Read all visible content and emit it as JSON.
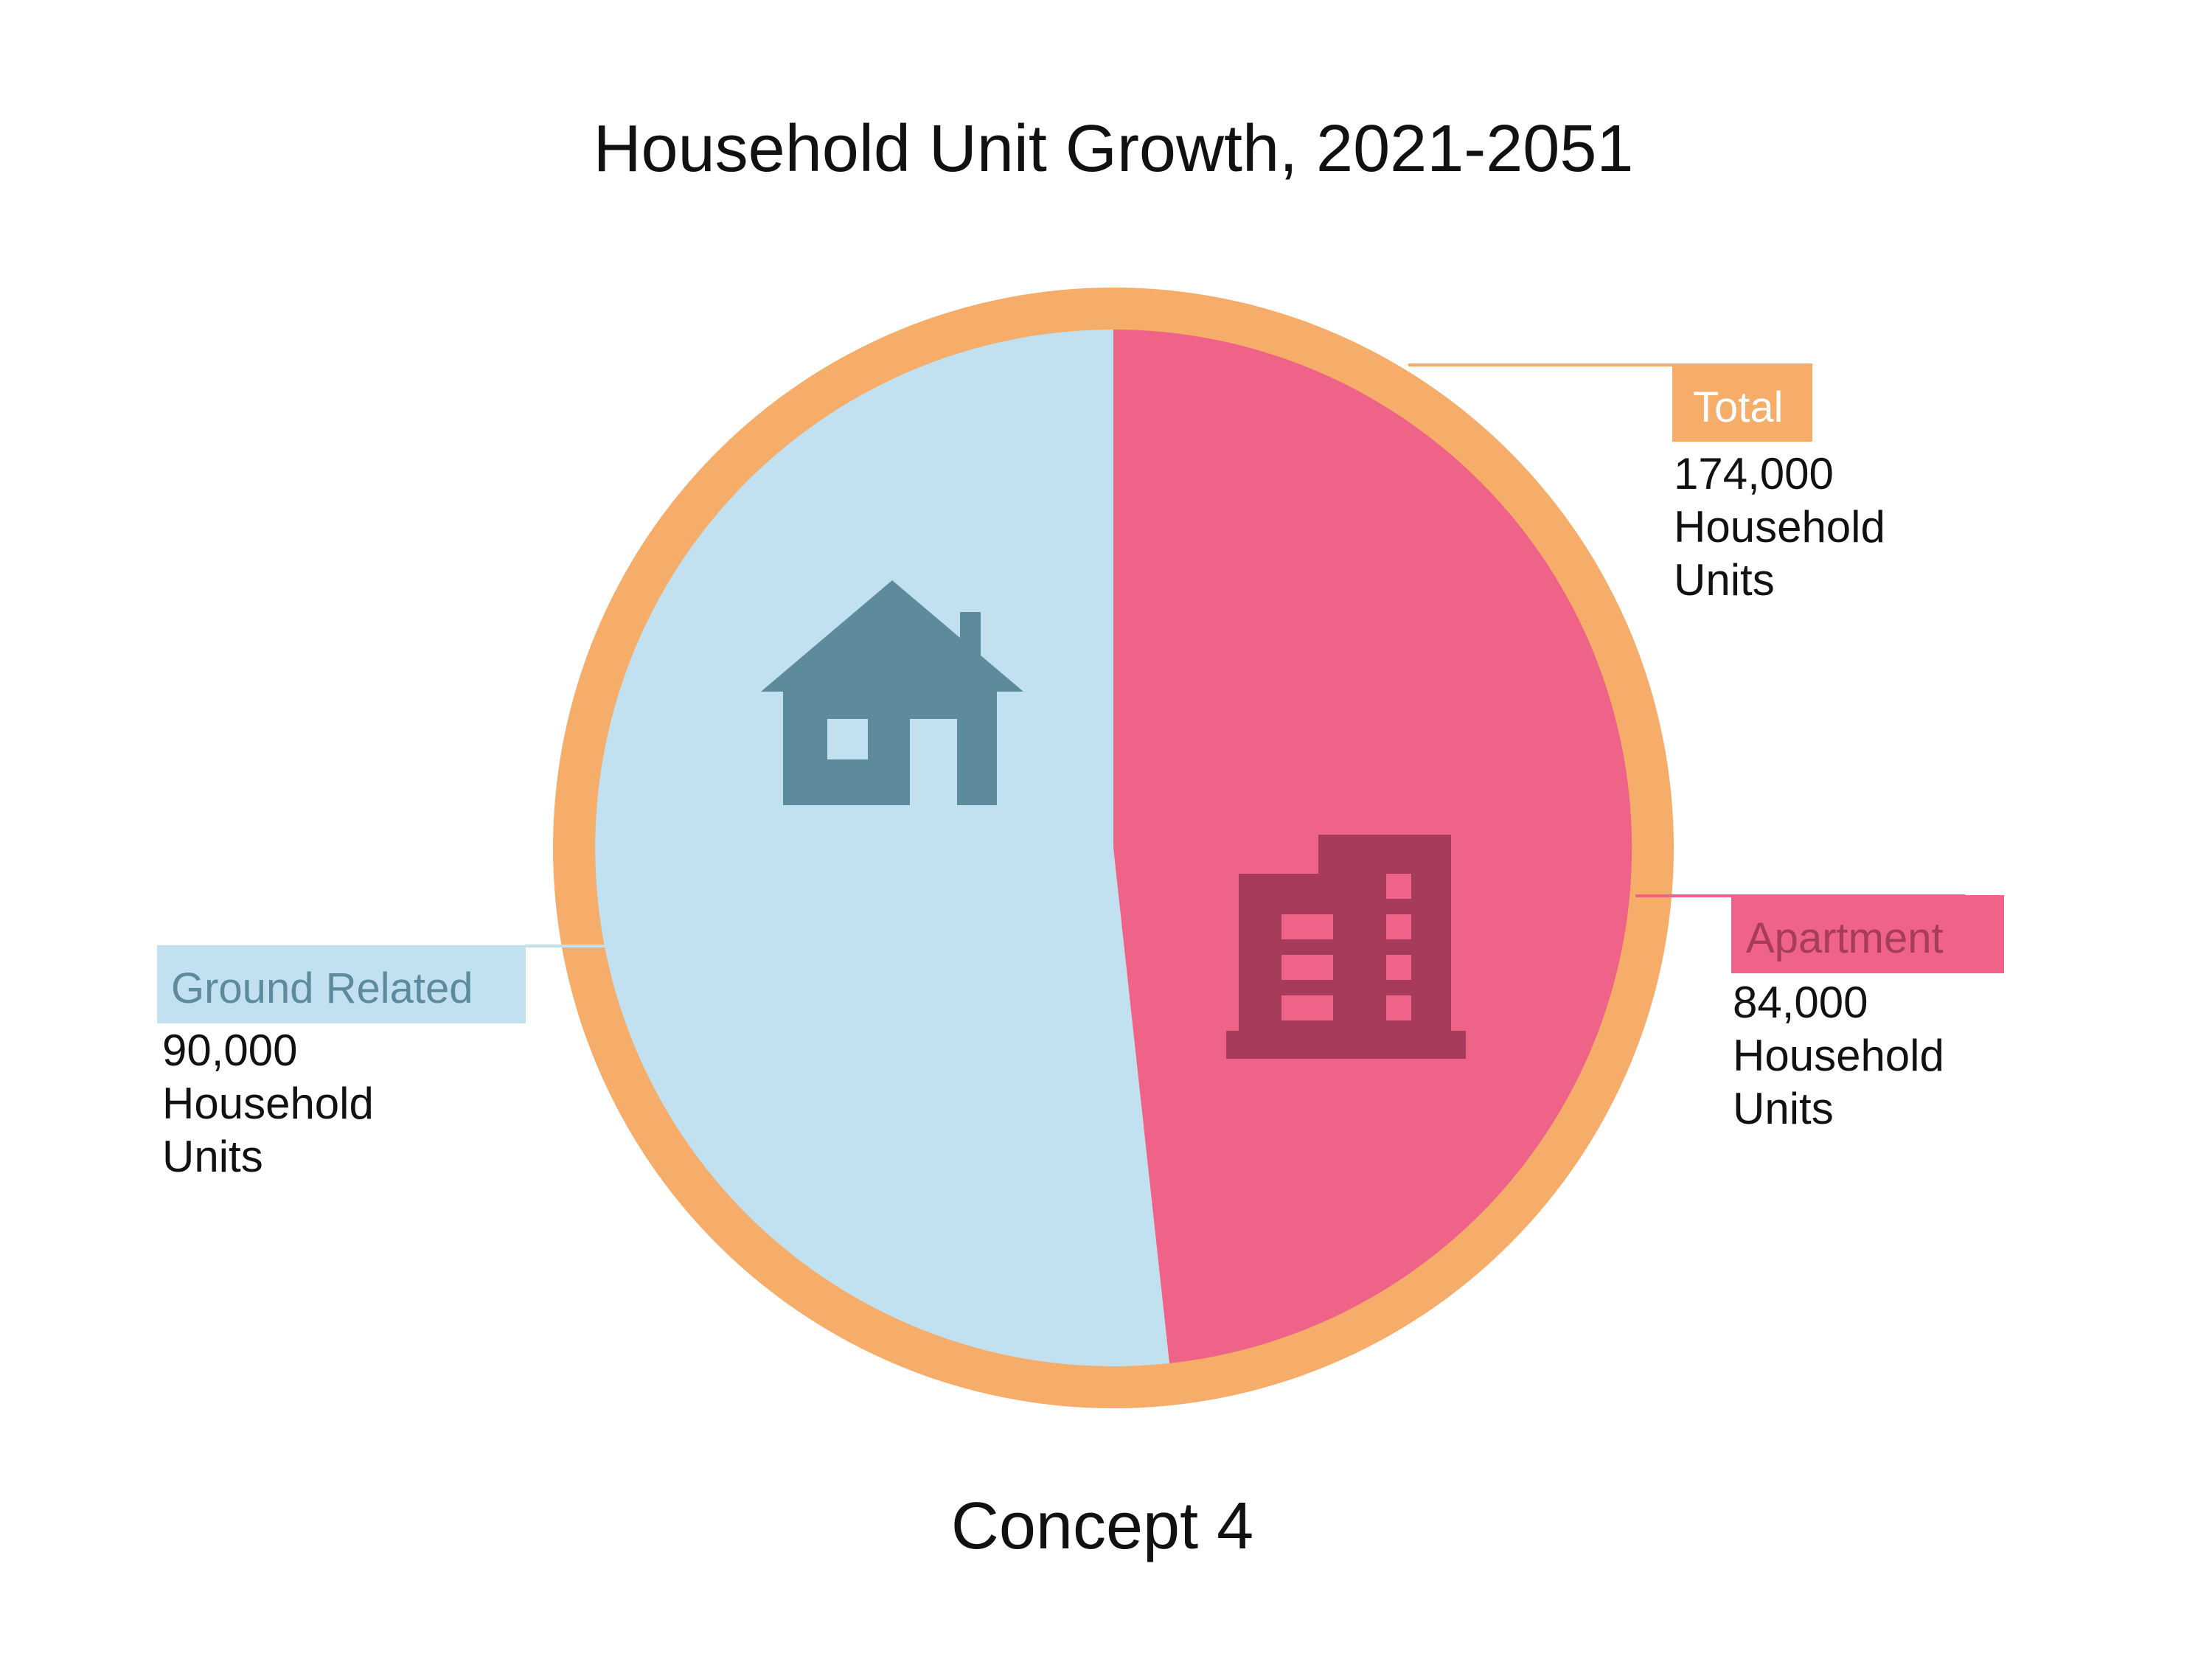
{
  "chart_data": {
    "type": "pie",
    "title": "Household Unit Growth, 2021-2051",
    "subtitle": "Concept 4",
    "total": {
      "label": "Total",
      "value": 174000,
      "value_text": "174,000",
      "unit_lines": [
        "Household",
        "Units"
      ]
    },
    "slices": [
      {
        "name": "Apartment",
        "value": 84000,
        "value_text": "84,000",
        "unit_lines": [
          "Household",
          "Units"
        ],
        "icon": "apartment-building-icon"
      },
      {
        "name": "Ground Related",
        "value": 90000,
        "value_text": "90,000",
        "unit_lines": [
          "Household",
          "Units"
        ],
        "icon": "house-icon"
      }
    ]
  },
  "colors": {
    "ring": "#f5ad69",
    "apartment": "#ef6389",
    "apartment_dark": "#a63b5c",
    "ground_related": "#c1e1f1",
    "ground_related_dark": "#5e8b9c",
    "total_tag_text": "#ffffff"
  }
}
